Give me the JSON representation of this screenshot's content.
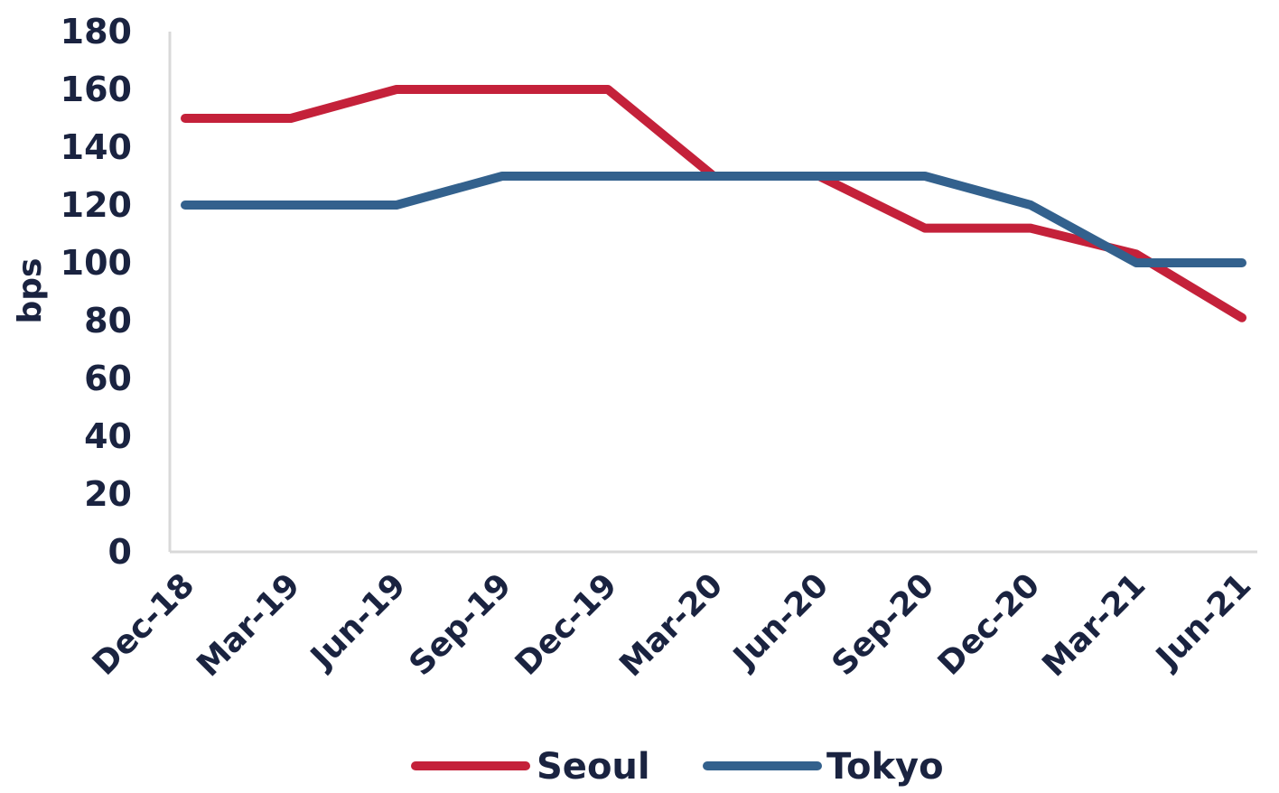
{
  "chart_data": {
    "type": "line",
    "ylabel": "bps",
    "xlabel": "",
    "ylim": [
      0,
      180
    ],
    "yticks": [
      "0",
      "20",
      "40",
      "60",
      "80",
      "100",
      "120",
      "140",
      "160",
      "180"
    ],
    "categories": [
      "Dec-18",
      "Mar-19",
      "Jun-19",
      "Sep-19",
      "Dec-19",
      "Mar-20",
      "Jun-20",
      "Sep-20",
      "Dec-20",
      "Mar-21",
      "Jun-21"
    ],
    "grid": false,
    "legend_position": "bottom",
    "series": [
      {
        "name": "Seoul",
        "color": "#c4213a",
        "values": [
          150,
          150,
          160,
          160,
          160,
          130,
          130,
          112,
          112,
          103,
          81
        ]
      },
      {
        "name": "Tokyo",
        "color": "#33618d",
        "values": [
          120,
          120,
          120,
          130,
          130,
          130,
          130,
          130,
          120,
          100,
          100
        ]
      }
    ]
  }
}
